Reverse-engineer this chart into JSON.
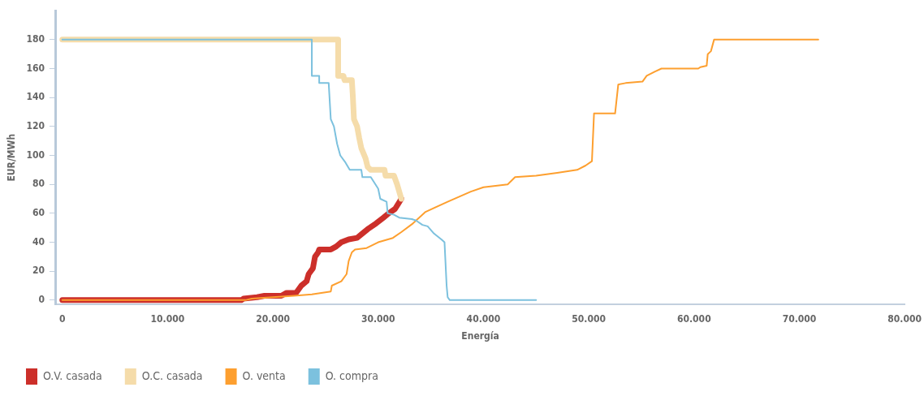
{
  "chart_data": {
    "type": "line",
    "xlabel": "Energía",
    "ylabel": "EUR/MWh",
    "xlim": [
      -600,
      80000
    ],
    "ylim": [
      -3,
      200
    ],
    "xticks": [
      0,
      {
        "value": 10000,
        "label": "10.000"
      },
      {
        "value": 20000,
        "label": "20.000"
      },
      {
        "value": 30000,
        "label": "30.000"
      },
      {
        "value": 40000,
        "label": "40.000"
      },
      {
        "value": 50000,
        "label": "50.000"
      },
      {
        "value": 60000,
        "label": "60.000"
      },
      {
        "value": 70000,
        "label": "70.000"
      },
      {
        "value": 80000,
        "label": "80.000"
      }
    ],
    "yticks": [
      0,
      20,
      40,
      60,
      80,
      100,
      120,
      140,
      160,
      180
    ],
    "grid": false,
    "legend": "bottom left",
    "marker": "none",
    "line_style": "solid",
    "series": [
      {
        "name": "O.V. casada",
        "color": "#cc2f2a",
        "x": [
          0,
          17000,
          17200,
          18500,
          19200,
          20800,
          21300,
          22200,
          22700,
          23200,
          23400,
          23800,
          24000,
          24300,
          24400,
          25500,
          26000,
          26500,
          27200,
          28000,
          28500,
          29000,
          29800,
          30500,
          31000,
          31600,
          32200
        ],
        "values": [
          0,
          0,
          1,
          2,
          3,
          3,
          5,
          5,
          10,
          13,
          18,
          22,
          30,
          33,
          35,
          35,
          37,
          40,
          42,
          43,
          46,
          49,
          53,
          57,
          60,
          63,
          70
        ]
      },
      {
        "name": "O.C. casada",
        "color": "#f5dcaa",
        "x": [
          0,
          26200,
          26200,
          26700,
          26800,
          27500,
          27600,
          27700,
          28000,
          28200,
          28400,
          28800,
          29000,
          29300,
          30600,
          30700,
          31500,
          31800,
          32200
        ],
        "values": [
          180,
          180,
          155,
          155,
          152,
          152,
          140,
          125,
          120,
          112,
          105,
          98,
          92,
          90,
          90,
          86,
          86,
          80,
          70
        ]
      },
      {
        "name": "O. venta",
        "color": "#fd9f2f",
        "x": [
          0,
          17400,
          18000,
          20000,
          22000,
          23700,
          25500,
          25600,
          26500,
          27000,
          27200,
          27500,
          27800,
          28900,
          30000,
          31400,
          32200,
          33300,
          34500,
          36600,
          38800,
          40000,
          42300,
          43000,
          45000,
          47000,
          48900,
          49700,
          50300,
          50500,
          52500,
          52800,
          53500,
          55100,
          55500,
          56300,
          56900,
          60400,
          60600,
          61200,
          61300,
          61600,
          61900,
          71800
        ],
        "values": [
          0,
          0,
          1,
          2,
          3,
          4,
          6,
          10,
          13,
          18,
          27,
          33,
          35,
          36,
          40,
          43,
          47,
          53,
          61,
          68,
          75,
          78,
          80,
          85,
          86,
          88,
          90,
          93,
          96,
          129,
          129,
          149,
          150,
          151,
          155,
          158,
          160,
          160,
          161,
          162,
          170,
          172,
          180,
          180
        ]
      },
      {
        "name": "O. compra",
        "color": "#7cc1de",
        "x": [
          0,
          23700,
          23700,
          24400,
          24400,
          25300,
          25500,
          25800,
          26100,
          26400,
          26900,
          27300,
          28400,
          28500,
          29300,
          30000,
          30200,
          30800,
          30900,
          31500,
          32000,
          33200,
          33600,
          34200,
          34700,
          35300,
          36000,
          36300,
          36500,
          36600,
          36800,
          45000
        ],
        "values": [
          180,
          180,
          155,
          155,
          150,
          150,
          125,
          120,
          108,
          100,
          95,
          90,
          90,
          85,
          85,
          77,
          70,
          68,
          60,
          59,
          57,
          56,
          55,
          52,
          51,
          46,
          42,
          40,
          10,
          2,
          0,
          0
        ]
      }
    ]
  }
}
